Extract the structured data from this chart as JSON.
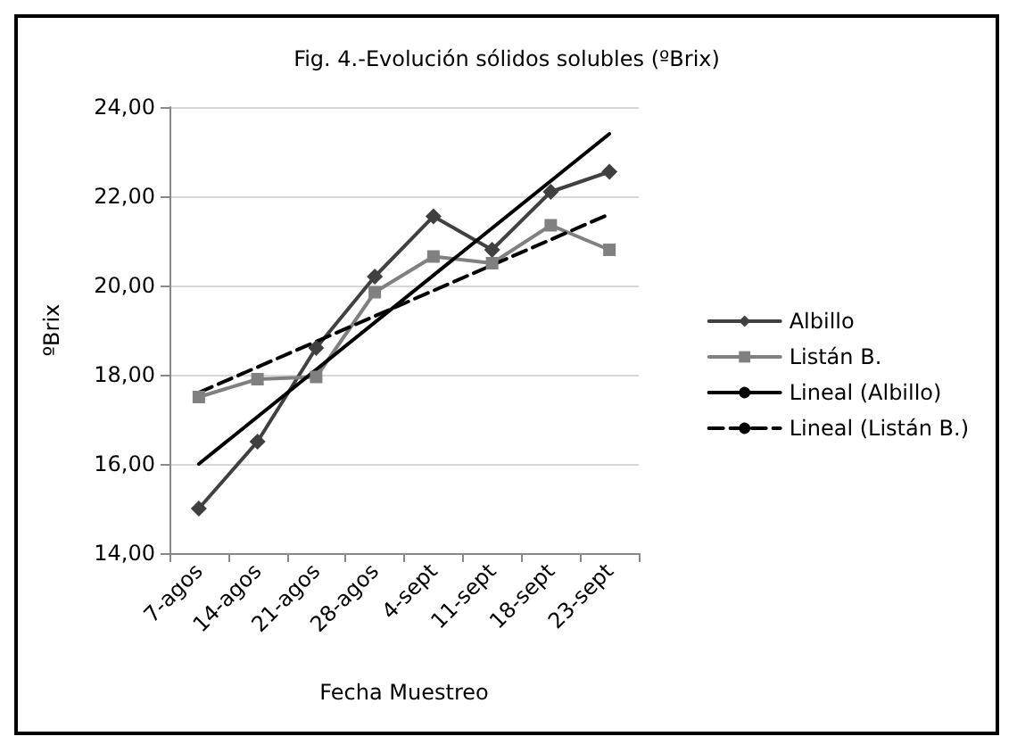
{
  "chart_data": {
    "type": "line",
    "title": "Fig. 4.-Evolución sólidos solubles (ºBrix)",
    "xlabel": "Fecha Muestreo",
    "ylabel": "ºBrix",
    "categories": [
      "7-agos",
      "14-agos",
      "21-agos",
      "28-agos",
      "4-sept",
      "11-sept",
      "18-sept",
      "23-sept"
    ],
    "ylim": [
      14,
      24
    ],
    "yticks": [
      {
        "value": 14,
        "label": "14,00"
      },
      {
        "value": 16,
        "label": "16,00"
      },
      {
        "value": 18,
        "label": "18,00"
      },
      {
        "value": 20,
        "label": "20,00"
      },
      {
        "value": 22,
        "label": "22,00"
      },
      {
        "value": 24,
        "label": "24,00"
      }
    ],
    "grid": "y",
    "legend": "right",
    "series": [
      {
        "name": "Albillo",
        "color": "#404040",
        "marker": "diamond",
        "values": [
          15.0,
          16.5,
          18.6,
          20.2,
          21.55,
          20.8,
          22.1,
          22.55
        ]
      },
      {
        "name": "Listán B.",
        "color": "#808080",
        "marker": "square",
        "values": [
          17.5,
          17.9,
          17.95,
          19.85,
          20.65,
          20.5,
          21.35,
          20.8
        ]
      },
      {
        "name": "Lineal (Albillo)",
        "color": "#000000",
        "marker": "none",
        "line_style": "solid",
        "x": [
          "7-agos",
          "23-sept"
        ],
        "values": [
          16.0,
          23.4
        ]
      },
      {
        "name": "Lineal (Listán B.)",
        "color": "#000000",
        "marker": "none",
        "line_style": "dashed",
        "x": [
          "7-agos",
          "23-sept"
        ],
        "values": [
          17.6,
          21.6
        ]
      }
    ]
  }
}
